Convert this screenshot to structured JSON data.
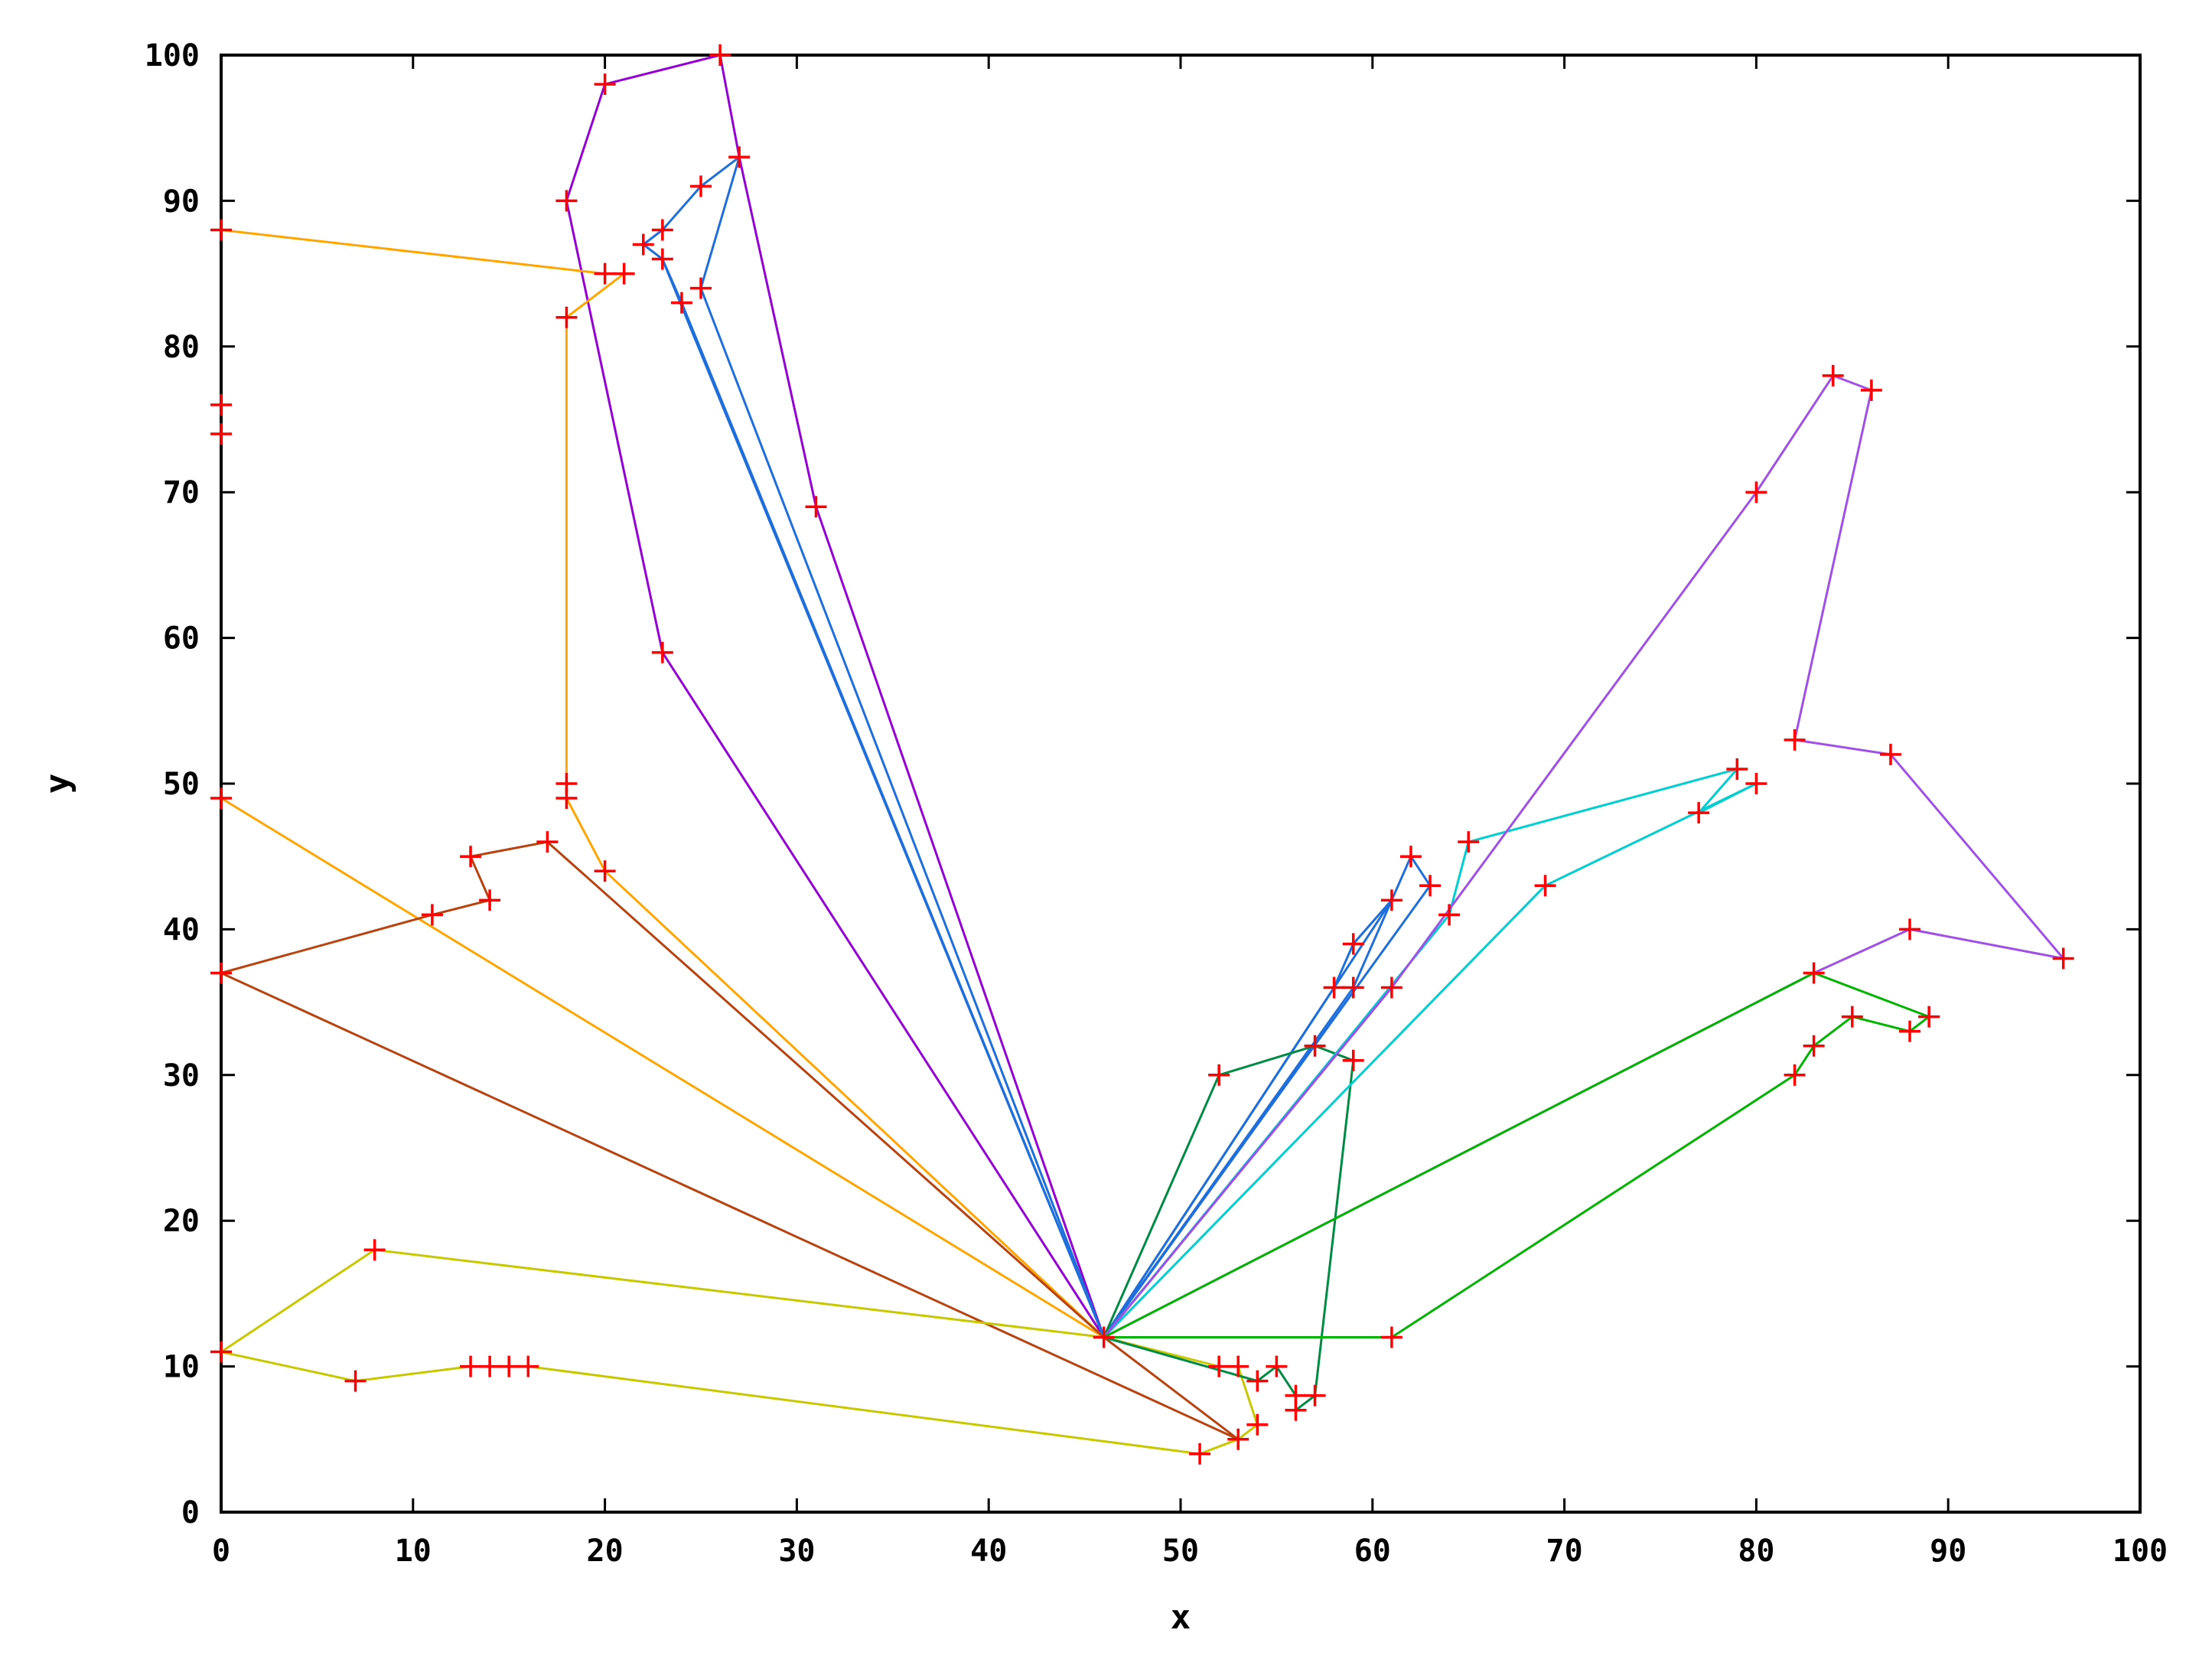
{
  "chart_data": {
    "type": "line",
    "xlabel": "x",
    "ylabel": "y",
    "xlim": [
      0,
      100
    ],
    "ylim": [
      0,
      100
    ],
    "xticks": [
      0,
      10,
      20,
      30,
      40,
      50,
      60,
      70,
      80,
      90,
      100
    ],
    "yticks": [
      0,
      10,
      20,
      30,
      40,
      50,
      60,
      70,
      80,
      90,
      100
    ],
    "grid": false,
    "legend": "none",
    "marker": "plus",
    "marker_color": "#ff0000",
    "series": [
      {
        "color": "#9400d3",
        "points": [
          [
            46,
            12
          ],
          [
            23,
            59
          ],
          [
            18,
            90
          ],
          [
            20,
            98
          ],
          [
            26,
            100
          ],
          [
            27,
            93
          ],
          [
            31,
            69
          ],
          [
            46,
            12
          ]
        ]
      },
      {
        "color": "#1e6fdc",
        "points": [
          [
            46,
            12
          ],
          [
            23,
            86
          ],
          [
            22,
            87
          ],
          [
            23,
            88
          ],
          [
            25,
            91
          ],
          [
            27,
            93
          ],
          [
            25,
            84
          ],
          [
            46,
            12
          ]
        ]
      },
      {
        "color": "#1e6fdc",
        "points": [
          [
            46,
            12
          ],
          [
            24,
            83
          ],
          [
            23,
            86
          ],
          [
            46,
            12
          ]
        ]
      },
      {
        "color": "#ffa500",
        "points": [
          [
            46,
            12
          ],
          [
            20,
            44
          ],
          [
            18,
            49
          ],
          [
            18,
            50
          ],
          [
            18,
            82
          ],
          [
            21,
            85
          ],
          [
            20,
            85
          ],
          [
            0,
            88
          ]
        ]
      },
      {
        "color": "#ffa500",
        "points": [
          [
            46,
            12
          ],
          [
            0,
            49
          ]
        ]
      },
      {
        "color": "#b8430e",
        "points": [
          [
            46,
            12
          ],
          [
            17,
            46
          ],
          [
            13,
            45
          ],
          [
            14,
            42
          ],
          [
            11,
            41
          ],
          [
            0,
            37
          ],
          [
            53,
            5
          ],
          [
            46,
            12
          ]
        ]
      },
      {
        "color": "#c8c800",
        "points": [
          [
            46,
            12
          ],
          [
            8,
            18
          ],
          [
            0,
            11
          ],
          [
            7,
            9
          ],
          [
            13,
            10
          ],
          [
            14,
            10
          ],
          [
            15,
            10
          ],
          [
            16,
            10
          ],
          [
            51,
            4
          ],
          [
            53,
            5
          ],
          [
            54,
            6
          ],
          [
            53,
            10
          ],
          [
            52,
            10
          ],
          [
            46,
            12
          ]
        ]
      },
      {
        "color": "#1e6fdc",
        "points": [
          [
            46,
            12
          ],
          [
            58,
            36
          ],
          [
            59,
            39
          ],
          [
            61,
            42
          ],
          [
            62,
            45
          ],
          [
            63,
            43
          ],
          [
            46,
            12
          ]
        ]
      },
      {
        "color": "#1e6fdc",
        "points": [
          [
            46,
            12
          ],
          [
            59,
            36
          ],
          [
            61,
            42
          ],
          [
            46,
            12
          ]
        ]
      },
      {
        "color": "#008b45",
        "points": [
          [
            46,
            12
          ],
          [
            52,
            30
          ],
          [
            57,
            32
          ],
          [
            59,
            31
          ],
          [
            57,
            8
          ],
          [
            56,
            7
          ],
          [
            56,
            8
          ],
          [
            55,
            10
          ],
          [
            54,
            9
          ],
          [
            46,
            12
          ]
        ]
      },
      {
        "color": "#00ced1",
        "points": [
          [
            46,
            12
          ],
          [
            64,
            41
          ],
          [
            65,
            46
          ],
          [
            79,
            51
          ],
          [
            77,
            48
          ],
          [
            80,
            50
          ],
          [
            69,
            43
          ],
          [
            46,
            12
          ]
        ]
      },
      {
        "color": "#a050e6",
        "points": [
          [
            46,
            12
          ],
          [
            61,
            36
          ],
          [
            80,
            70
          ],
          [
            84,
            78
          ],
          [
            86,
            77
          ],
          [
            82,
            53
          ],
          [
            87,
            52
          ],
          [
            96,
            38
          ],
          [
            88,
            40
          ],
          [
            83,
            37
          ],
          [
            46,
            12
          ]
        ]
      },
      {
        "color": "#00b400",
        "points": [
          [
            46,
            12
          ],
          [
            61,
            12
          ],
          [
            82,
            30
          ],
          [
            83,
            32
          ],
          [
            85,
            34
          ],
          [
            88,
            33
          ],
          [
            89,
            34
          ],
          [
            83,
            37
          ],
          [
            46,
            12
          ]
        ]
      }
    ],
    "extra_points": [
      [
        0,
        76
      ],
      [
        0,
        74
      ],
      [
        0,
        11
      ]
    ]
  }
}
